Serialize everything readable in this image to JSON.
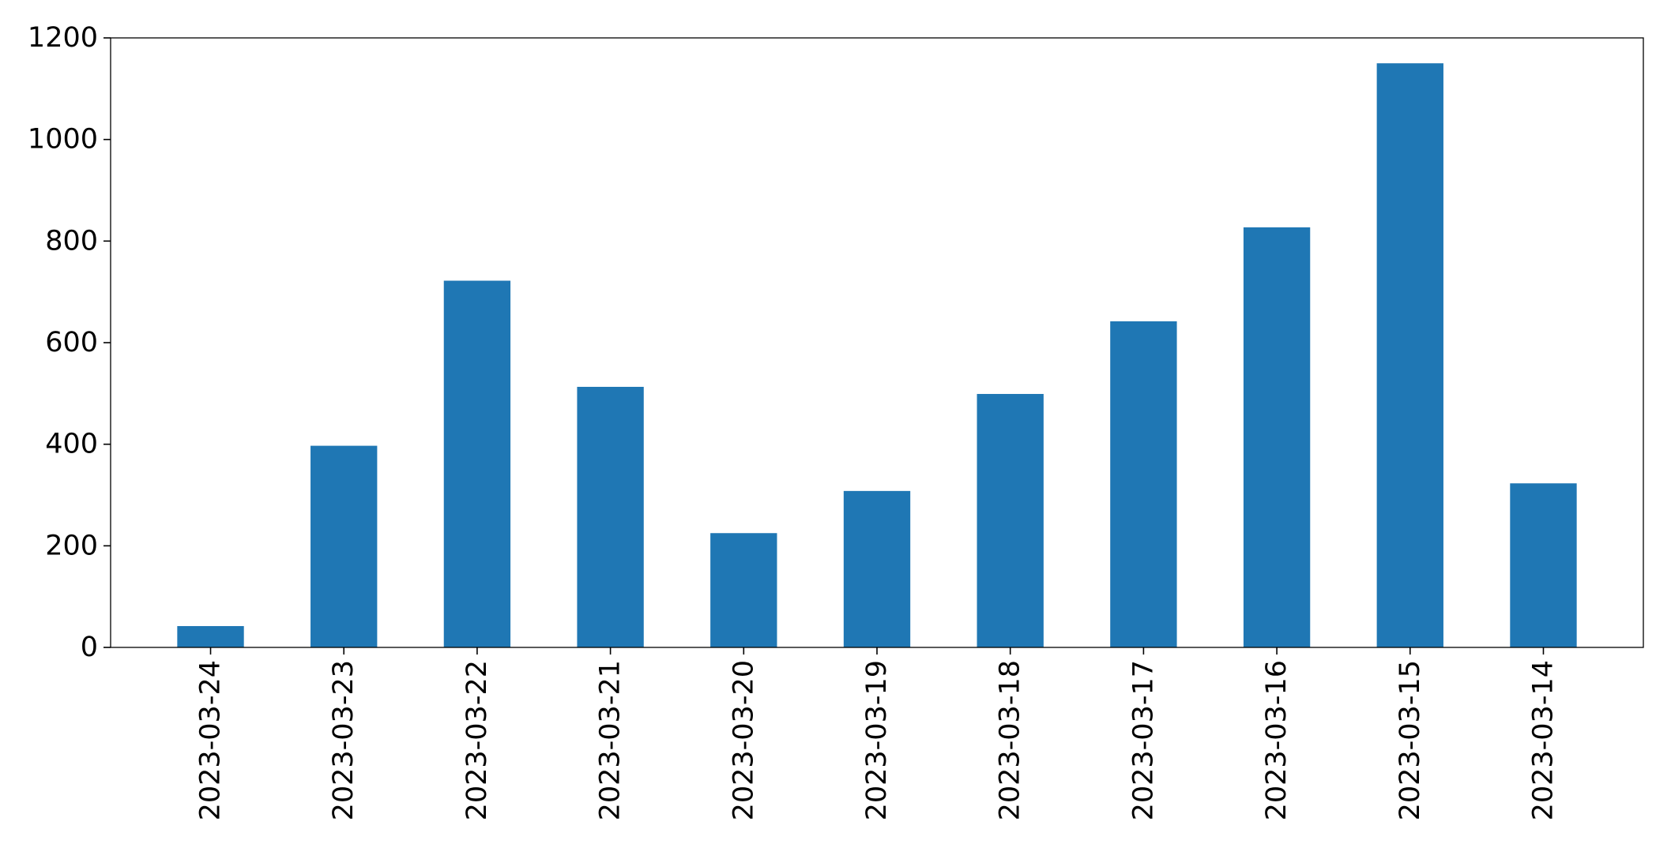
{
  "chart_data": {
    "type": "bar",
    "categories": [
      "2023-03-24",
      "2023-03-23",
      "2023-03-22",
      "2023-03-21",
      "2023-03-20",
      "2023-03-19",
      "2023-03-18",
      "2023-03-17",
      "2023-03-16",
      "2023-03-15",
      "2023-03-14"
    ],
    "values": [
      42,
      397,
      722,
      513,
      225,
      308,
      499,
      642,
      827,
      1150,
      323
    ],
    "title": "",
    "xlabel": "",
    "ylabel": "",
    "ylim": [
      0,
      1200
    ],
    "yticks": [
      0,
      200,
      400,
      600,
      800,
      1000,
      1200
    ],
    "grid": false,
    "legend": "none",
    "bar_color": "#1f77b4"
  }
}
